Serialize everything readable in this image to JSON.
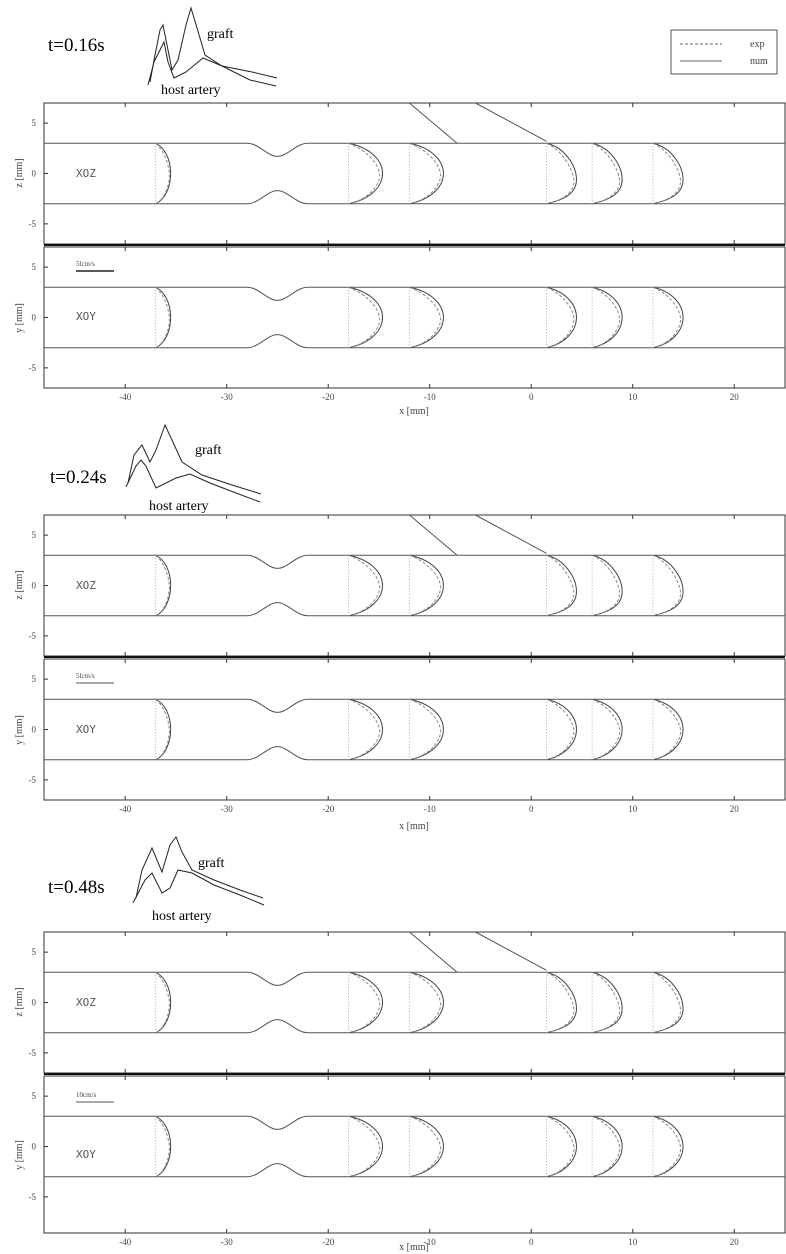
{
  "legend": {
    "exp_label": "exp",
    "num_label": "num"
  },
  "blocks": [
    {
      "time_label": "t=0.16s",
      "inset": {
        "graft_label": "graft",
        "host_label": "host artery"
      },
      "panels": [
        {
          "plane_label": "XOZ",
          "ylabel": "z [mm]",
          "scale_label": ""
        },
        {
          "plane_label": "XOY",
          "ylabel": "y [mm]",
          "scale_label": "5lcm/s"
        }
      ],
      "xlabel": "x [mm]"
    },
    {
      "time_label": "t=0.24s",
      "inset": {
        "graft_label": "graft",
        "host_label": "host artery"
      },
      "panels": [
        {
          "plane_label": "XOZ",
          "ylabel": "z [mm]",
          "scale_label": ""
        },
        {
          "plane_label": "XOY",
          "ylabel": "y [mm]",
          "scale_label": "5lcm/s"
        }
      ],
      "xlabel": "x [mm]"
    },
    {
      "time_label": "t=0.48s",
      "inset": {
        "graft_label": "graft",
        "host_label": "host artery"
      },
      "panels": [
        {
          "plane_label": "XOZ",
          "ylabel": "z [mm]",
          "scale_label": ""
        },
        {
          "plane_label": "XOY",
          "ylabel": "y [mm]",
          "scale_label": "10cm/s"
        }
      ],
      "xlabel": "x [mm]"
    }
  ],
  "axes": {
    "x_range": [
      -48,
      25
    ],
    "y_range": [
      -7,
      7
    ],
    "x_ticks": [
      "-40",
      "-30",
      "-20",
      "-10",
      "0",
      "10",
      "20"
    ],
    "y_ticks": [
      "5",
      "0",
      "-5"
    ]
  },
  "profile_x_positions": [
    -37,
    -18,
    -12,
    1.5,
    6,
    12
  ],
  "colors": {
    "line": "#555555",
    "frame": "#333333",
    "divider": "#111111"
  }
}
